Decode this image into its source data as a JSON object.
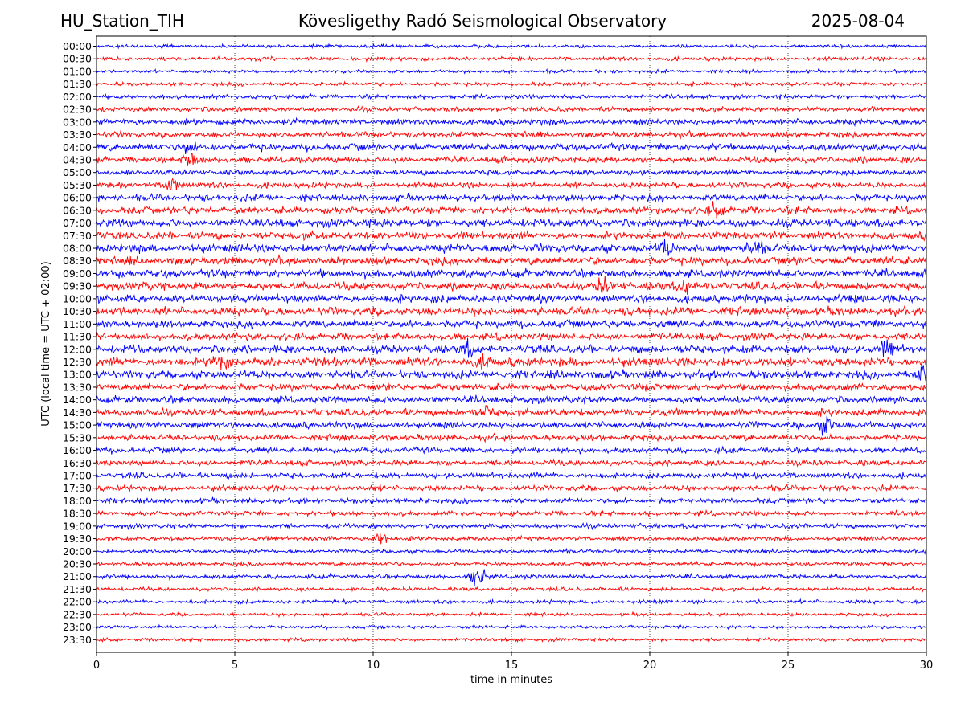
{
  "header": {
    "station": "HU_Station_TIH",
    "title": "Kövesligethy Radó Seismological Observatory",
    "date": "2025-08-04"
  },
  "chart_data": {
    "type": "line",
    "subtype": "helicorder",
    "xlabel": "time in minutes",
    "ylabel": "UTC (local time = UTC + 02:00)",
    "xlim": [
      0,
      30
    ],
    "x_ticks": [
      0,
      5,
      10,
      15,
      20,
      25,
      30
    ],
    "x_grid": "dotted vertical lines at 5, 10, 15, 20, 25 min",
    "row_labels": [
      "00:00",
      "00:30",
      "01:00",
      "01:30",
      "02:00",
      "02:30",
      "03:00",
      "03:30",
      "04:00",
      "04:30",
      "05:00",
      "05:30",
      "06:00",
      "06:30",
      "07:00",
      "07:30",
      "08:00",
      "08:30",
      "09:00",
      "09:30",
      "10:00",
      "10:30",
      "11:00",
      "11:30",
      "12:00",
      "12:30",
      "13:00",
      "13:30",
      "14:00",
      "14:30",
      "15:00",
      "15:30",
      "16:00",
      "16:30",
      "17:00",
      "17:30",
      "18:00",
      "18:30",
      "19:00",
      "19:30",
      "20:00",
      "20:30",
      "21:00",
      "21:30",
      "22:00",
      "22:30",
      "23:00",
      "23:30"
    ],
    "trace_colors": [
      "#0000ff",
      "#ff0000"
    ],
    "relative_noise_amplitude": [
      0.35,
      0.4,
      0.35,
      0.4,
      0.45,
      0.5,
      0.6,
      0.6,
      0.75,
      0.65,
      0.55,
      0.6,
      0.7,
      0.75,
      0.85,
      0.8,
      0.9,
      0.85,
      0.85,
      0.85,
      0.85,
      0.85,
      0.8,
      0.75,
      0.85,
      0.9,
      0.85,
      0.75,
      0.75,
      0.75,
      0.7,
      0.65,
      0.6,
      0.6,
      0.6,
      0.6,
      0.55,
      0.5,
      0.5,
      0.45,
      0.4,
      0.4,
      0.45,
      0.4,
      0.4,
      0.35,
      0.35,
      0.35
    ],
    "bursts": [
      {
        "row": "04:00",
        "minute": 3.3,
        "amp": 1.6
      },
      {
        "row": "04:30",
        "minute": 3.4,
        "amp": 2.0
      },
      {
        "row": "05:30",
        "minute": 2.7,
        "amp": 2.6
      },
      {
        "row": "06:30",
        "minute": 22.4,
        "amp": 1.6
      },
      {
        "row": "08:00",
        "minute": 20.6,
        "amp": 2.0
      },
      {
        "row": "08:00",
        "minute": 23.8,
        "amp": 1.8
      },
      {
        "row": "09:30",
        "minute": 18.3,
        "amp": 1.6
      },
      {
        "row": "09:30",
        "minute": 21.3,
        "amp": 1.8
      },
      {
        "row": "12:00",
        "minute": 13.4,
        "amp": 1.8
      },
      {
        "row": "12:00",
        "minute": 28.6,
        "amp": 2.0
      },
      {
        "row": "12:30",
        "minute": 4.5,
        "amp": 1.8
      },
      {
        "row": "12:30",
        "minute": 14.1,
        "amp": 1.6
      },
      {
        "row": "13:00",
        "minute": 29.9,
        "amp": 2.2
      },
      {
        "row": "14:30",
        "minute": 14.1,
        "amp": 1.6
      },
      {
        "row": "15:00",
        "minute": 26.4,
        "amp": 2.4
      },
      {
        "row": "19:30",
        "minute": 10.3,
        "amp": 2.2
      },
      {
        "row": "21:00",
        "minute": 13.8,
        "amp": 3.2
      }
    ]
  }
}
